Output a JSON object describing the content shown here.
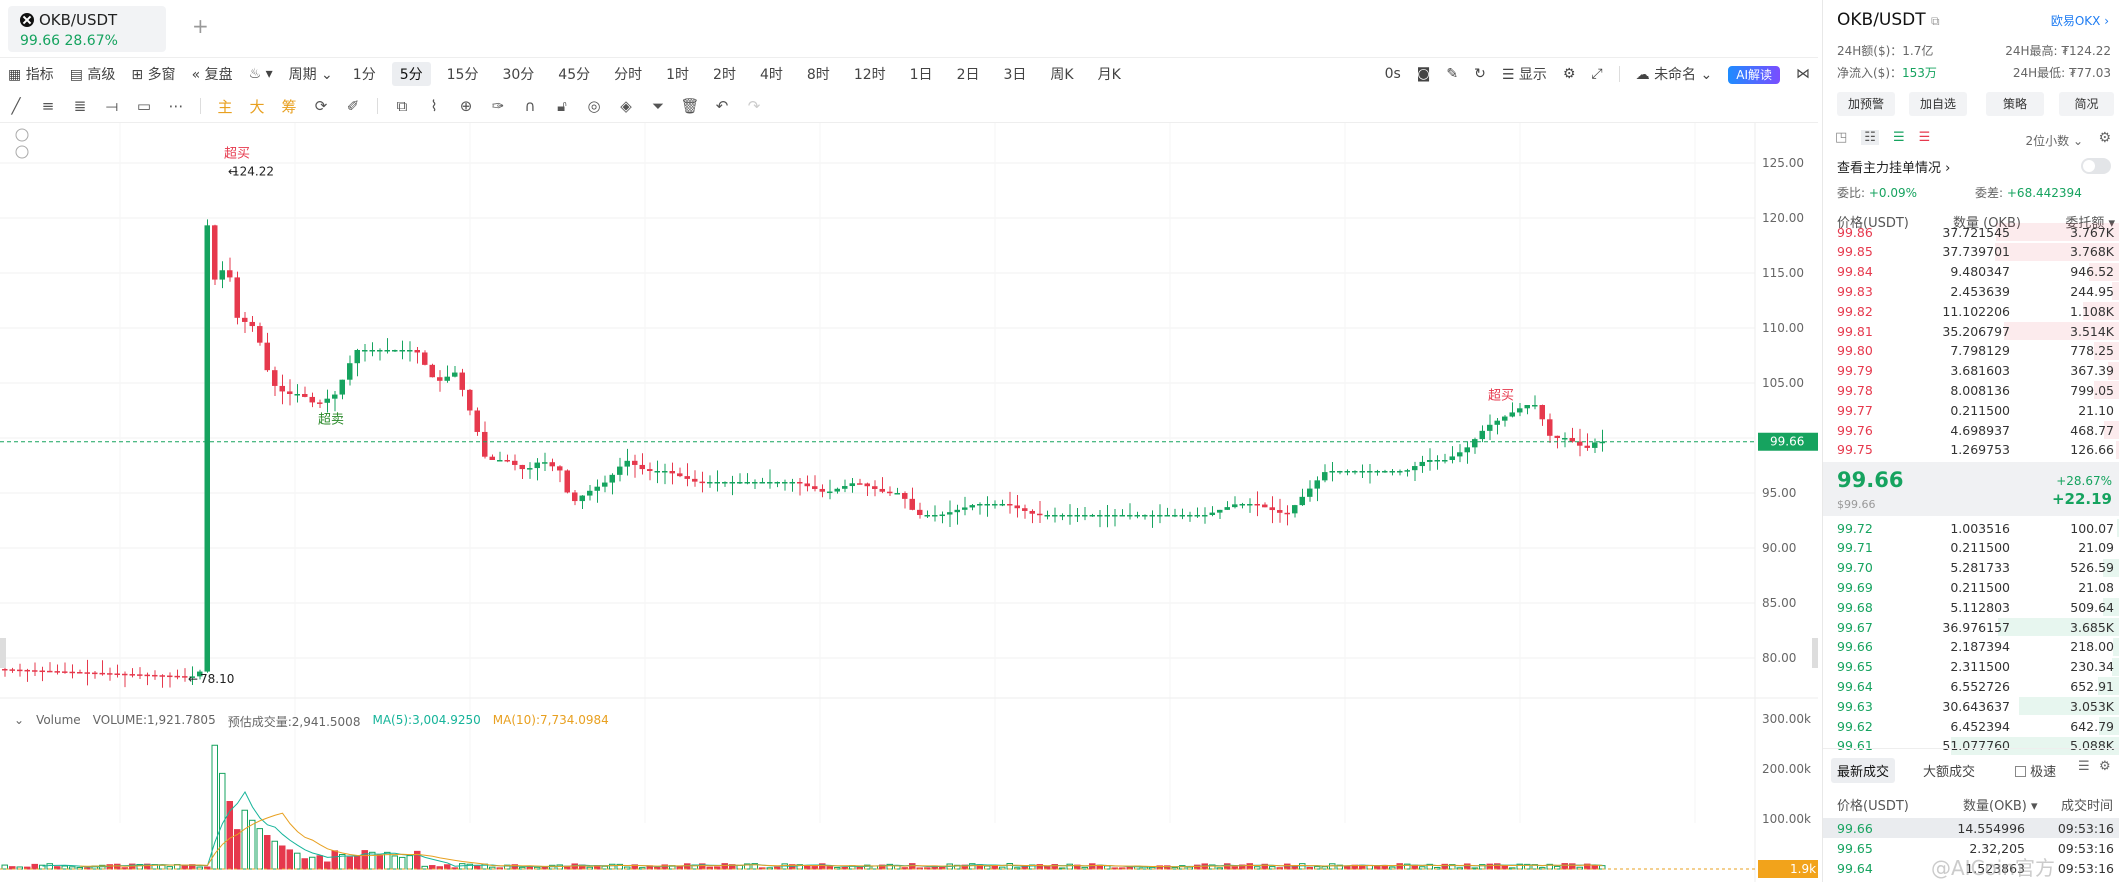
{
  "tab": {
    "title": "OKB/USDT",
    "price": "99.66  28.67%",
    "add": "+"
  },
  "toolbar1": {
    "indicators": "指标",
    "advanced": "高级",
    "multi_window": "多窗",
    "replay": "复盘",
    "period": "周期",
    "intervals": [
      "1分",
      "5分",
      "15分",
      "30分",
      "45分",
      "分时",
      "1时",
      "2时",
      "4时",
      "8时",
      "12时",
      "1日",
      "2日",
      "3日",
      "周K",
      "月K"
    ],
    "active_interval": "5分",
    "countdown": "0s",
    "display": "显示",
    "unnamed": "未命名",
    "ai": "AI解读"
  },
  "toolbar2": {
    "main": "主",
    "big": "大",
    "chip": "筹"
  },
  "chart": {
    "last_price": "99.66",
    "high_marker": "124.22",
    "low_marker": "78.10",
    "overbought": "超买",
    "oversold": "超卖",
    "overbought2": "超买",
    "axis_labels": [
      "125.00",
      "120.00",
      "115.00",
      "110.00",
      "105.00",
      "100.00",
      "95.00",
      "90.00",
      "85.00",
      "80.00"
    ],
    "vol_axis": [
      "300.00k",
      "200.00k",
      "100.00k"
    ],
    "vol_last": "1.9k"
  },
  "volume": {
    "label": "Volume",
    "vol": "VOLUME:1,921.7805",
    "est": "预估成交量:2,941.5008",
    "ma5": "MA(5):3,004.9250",
    "ma10": "MA(10):7,734.0984"
  },
  "right": {
    "title": "OKB/USDT",
    "exchange": "欧易OKX",
    "vol24": "24H额($)：1.7亿",
    "inflow_label": "净流入($)：",
    "inflow": "153万",
    "high24": "24H最高: ₮124.22",
    "low24": "24H最低: ₮77.03",
    "buttons": [
      "加预警",
      "加自选",
      "策略",
      "简况"
    ],
    "decimals": "2位小数",
    "depth_link": "查看主力挂单情况",
    "ratio_label": "委比:",
    "ratio": "+0.09%",
    "diff_label": "委差:",
    "diff": "+68.442394",
    "cols": [
      "价格(USDT)",
      "数量 (OKB)",
      "委托额"
    ],
    "asks": [
      {
        "p": "99.86",
        "q": "37.721545",
        "t": "3.767K"
      },
      {
        "p": "99.85",
        "q": "37.739701",
        "t": "3.768K"
      },
      {
        "p": "99.84",
        "q": "9.480347",
        "t": "946.52"
      },
      {
        "p": "99.83",
        "q": "2.453639",
        "t": "244.95"
      },
      {
        "p": "99.82",
        "q": "11.102206",
        "t": "1.108K"
      },
      {
        "p": "99.81",
        "q": "35.206797",
        "t": "3.514K"
      },
      {
        "p": "99.80",
        "q": "7.798129",
        "t": "778.25"
      },
      {
        "p": "99.79",
        "q": "3.681603",
        "t": "367.39"
      },
      {
        "p": "99.78",
        "q": "8.008136",
        "t": "799.05"
      },
      {
        "p": "99.77",
        "q": "0.211500",
        "t": "21.10"
      },
      {
        "p": "99.76",
        "q": "4.698937",
        "t": "468.77"
      },
      {
        "p": "99.75",
        "q": "1.269753",
        "t": "126.66"
      }
    ],
    "mid_price": "99.66",
    "mid_sub": "$99.66",
    "mid_pct": "+28.67%",
    "mid_chg": "+22.19",
    "bids": [
      {
        "p": "99.72",
        "q": "1.003516",
        "t": "100.07"
      },
      {
        "p": "99.71",
        "q": "0.211500",
        "t": "21.09"
      },
      {
        "p": "99.70",
        "q": "5.281733",
        "t": "526.59"
      },
      {
        "p": "99.69",
        "q": "0.211500",
        "t": "21.08"
      },
      {
        "p": "99.68",
        "q": "5.112803",
        "t": "509.64"
      },
      {
        "p": "99.67",
        "q": "36.976157",
        "t": "3.685K"
      },
      {
        "p": "99.66",
        "q": "2.187394",
        "t": "218.00"
      },
      {
        "p": "99.65",
        "q": "2.311500",
        "t": "230.34"
      },
      {
        "p": "99.64",
        "q": "6.552726",
        "t": "652.91"
      },
      {
        "p": "99.63",
        "q": "30.643637",
        "t": "3.053K"
      },
      {
        "p": "99.62",
        "q": "6.452394",
        "t": "642.79"
      },
      {
        "p": "99.61",
        "q": "51.077760",
        "t": "5.088K"
      }
    ],
    "trade_tabs": [
      "最新成交",
      "大额成交"
    ],
    "fast": "极速",
    "trade_cols": [
      "价格(USDT)",
      "数量(OKB)",
      "成交时间"
    ],
    "trades": [
      {
        "p": "99.66",
        "q": "14.554996",
        "t": "09:53:16"
      },
      {
        "p": "99.65",
        "q": "2.32,205",
        "t": "09:53:16"
      },
      {
        "p": "99.64",
        "q": "1.523863",
        "t": "09:53:16"
      }
    ],
    "watermark": "@AICoin官方"
  },
  "colors": {
    "up": "#16a35f",
    "down": "#e6394d",
    "accent": "#1e7cf2"
  }
}
